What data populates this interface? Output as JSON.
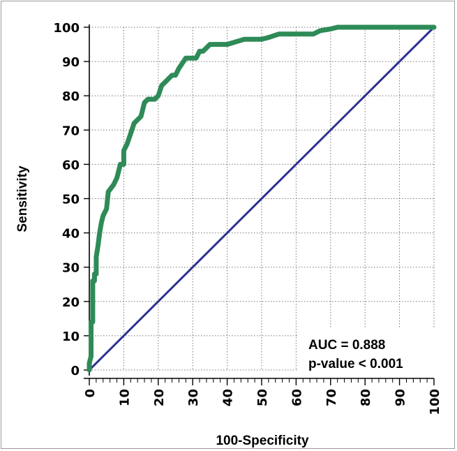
{
  "chart_data": {
    "type": "line",
    "xlabel": "100-Specificity",
    "ylabel": "Sensitivity",
    "xlim": [
      0,
      100
    ],
    "ylim": [
      0,
      100
    ],
    "x_ticks": [
      "0",
      "10",
      "20",
      "30",
      "40",
      "50",
      "60",
      "70",
      "80",
      "90",
      "100"
    ],
    "y_ticks": [
      "0",
      "10",
      "20",
      "30",
      "40",
      "50",
      "60",
      "70",
      "80",
      "90",
      "100"
    ],
    "grid": true,
    "series": [
      {
        "color": "#2e8b57",
        "x": [
          0,
          0,
          0.5,
          0.5,
          1,
          1,
          1.5,
          1.5,
          2,
          2,
          2.5,
          3,
          3.5,
          4,
          5,
          5.5,
          7,
          8,
          9,
          10,
          10,
          11,
          12,
          13,
          15,
          16,
          17,
          19,
          20,
          21,
          22,
          24,
          25,
          26,
          28,
          29,
          31,
          32,
          33,
          35,
          37,
          40,
          45,
          50,
          52,
          55,
          60,
          65,
          67,
          70,
          72,
          80,
          90,
          100
        ],
        "y": [
          0,
          2,
          4,
          14,
          14,
          26,
          26,
          28,
          28,
          33,
          36,
          40,
          43,
          45,
          47,
          52,
          54,
          56,
          60,
          60,
          64,
          66,
          69,
          72,
          74,
          78,
          79,
          79,
          80,
          83,
          84,
          86,
          86,
          88,
          91,
          91,
          91,
          93,
          93,
          95,
          95,
          95,
          96.5,
          96.5,
          97,
          98,
          98,
          98,
          99,
          99.5,
          100,
          100,
          100,
          100
        ]
      },
      {
        "color": "#2e3192",
        "x": [
          0,
          100
        ],
        "y": [
          0,
          100
        ]
      }
    ],
    "annotations": [
      "AUC = 0.888",
      "p-value < 0.001"
    ]
  }
}
